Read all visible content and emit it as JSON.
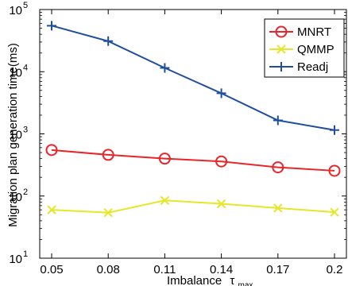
{
  "chart_data": {
    "type": "line",
    "xlabel": "Imbalance",
    "xlabel_symbol": "τ",
    "xlabel_subscript": "max",
    "ylabel": "Migration plan generation time(ms)",
    "yscale": "log",
    "ylim": [
      10,
      100000
    ],
    "ytick_mantissa": [
      "10",
      "10",
      "10",
      "10",
      "10"
    ],
    "ytick_exponents": [
      "1",
      "2",
      "3",
      "4",
      "5"
    ],
    "x": [
      "0.05",
      "0.08",
      "0.11",
      "0.14",
      "0.17",
      "0.2"
    ],
    "grid": false,
    "legend_position": "top-right",
    "series": [
      {
        "name": "MNRT",
        "color": "#e8262a",
        "marker": "circle",
        "values": [
          550,
          460,
          400,
          360,
          290,
          255
        ]
      },
      {
        "name": "QMMP",
        "color": "#e6e62a",
        "marker": "x",
        "values": [
          60,
          54,
          85,
          75,
          64,
          55
        ]
      },
      {
        "name": "Readj",
        "color": "#1f4e9f",
        "marker": "plus",
        "values": [
          55000,
          31000,
          11500,
          4500,
          1650,
          1150
        ]
      }
    ]
  }
}
